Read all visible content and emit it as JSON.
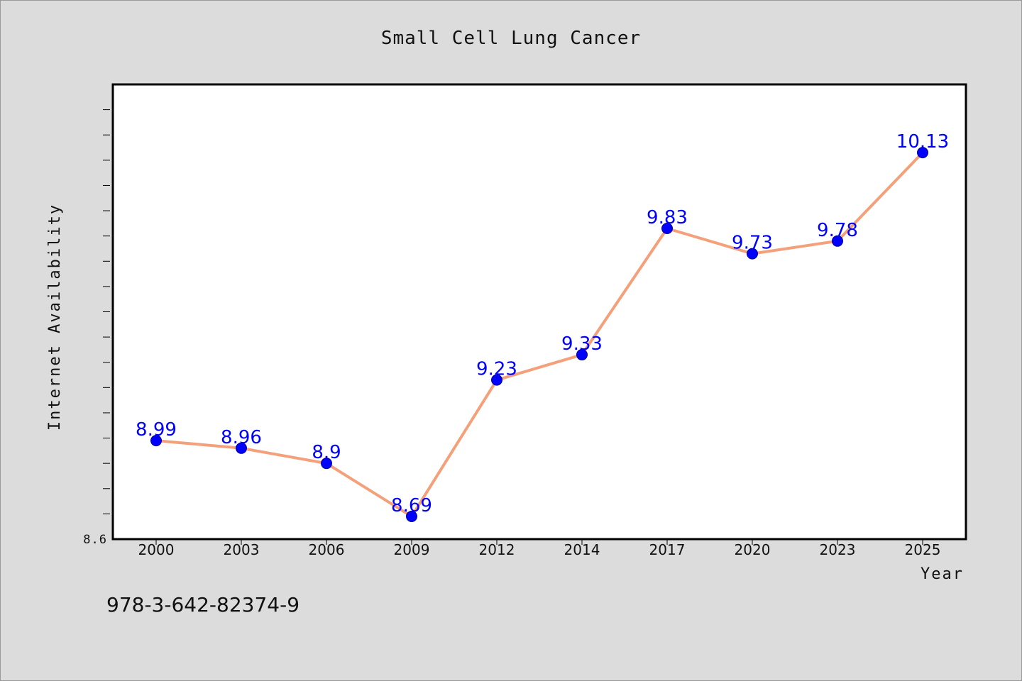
{
  "chart_data": {
    "type": "line",
    "title": "Small Cell Lung Cancer",
    "xlabel": "Year",
    "ylabel": "Internet Availability",
    "categories": [
      "2000",
      "2003",
      "2006",
      "2009",
      "2012",
      "2014",
      "2017",
      "2020",
      "2023",
      "2025"
    ],
    "series": [
      {
        "values": [
          8.99,
          8.96,
          8.9,
          8.69,
          9.23,
          9.33,
          9.83,
          9.73,
          9.78,
          10.13
        ],
        "color": "#f4a07a"
      }
    ],
    "ylim": [
      8.6,
      10.4
    ],
    "ytick_labels": [
      "8.6"
    ],
    "marker_color": "#0000ff",
    "data_label_color": "#0000ff",
    "grid": false
  },
  "footer": {
    "text": "978-3-642-82374-9"
  }
}
